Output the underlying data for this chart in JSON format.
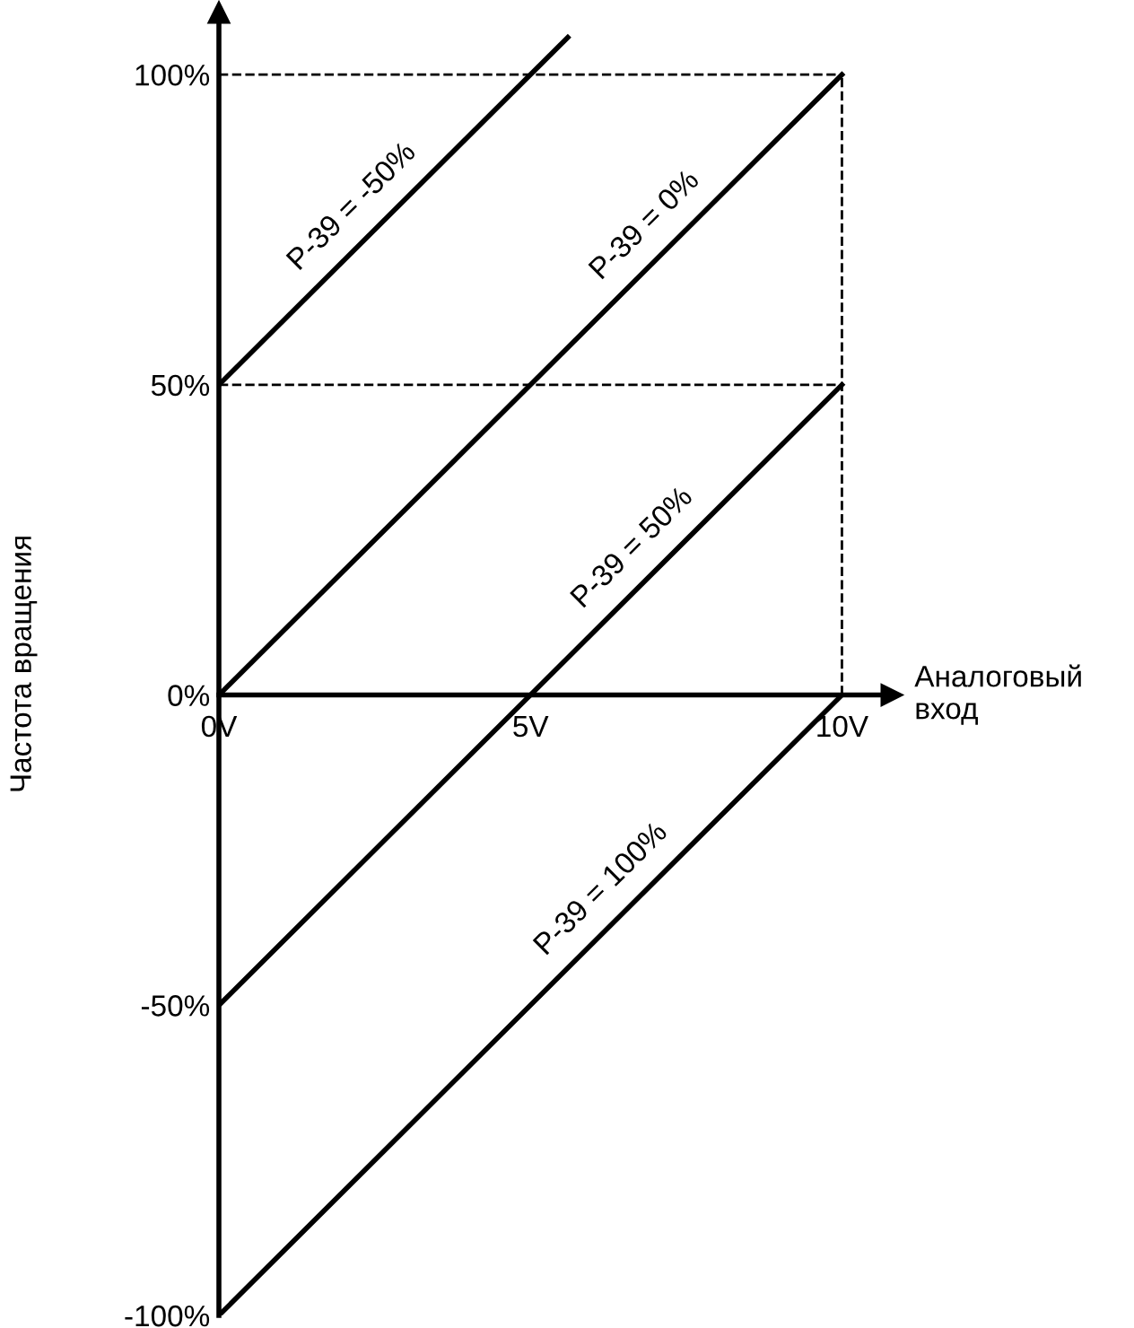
{
  "chart_data": {
    "type": "line",
    "xlabel": "Аналоговый\nвход",
    "ylabel": "Частота вращения",
    "xlim": [
      0,
      10.8
    ],
    "ylim": [
      -100,
      110
    ],
    "xticks": [
      {
        "value": 0,
        "label": "0V"
      },
      {
        "value": 5,
        "label": "5V"
      },
      {
        "value": 10,
        "label": "10V"
      }
    ],
    "yticks": [
      {
        "value": -100,
        "label": "-100%"
      },
      {
        "value": -50,
        "label": "-50%"
      },
      {
        "value": 0,
        "label": "0%"
      },
      {
        "value": 50,
        "label": "50%"
      },
      {
        "value": 100,
        "label": "100%"
      }
    ],
    "series": [
      {
        "color": "#000000",
        "x": [
          0,
          5.6
        ],
        "values": [
          50,
          106
        ]
      },
      {
        "color": "#000000",
        "x": [
          0,
          10
        ],
        "values": [
          0,
          100
        ]
      },
      {
        "color": "#000000",
        "x": [
          0,
          10
        ],
        "values": [
          -50,
          50
        ]
      },
      {
        "color": "#000000",
        "x": [
          0,
          10
        ],
        "values": [
          -100,
          0
        ]
      }
    ],
    "ref_lines": [
      {
        "axis": "y",
        "value": 100,
        "color": "#000000",
        "line_style": "dashed"
      },
      {
        "axis": "y",
        "value": 50,
        "color": "#000000",
        "line_style": "dashed"
      },
      {
        "axis": "x",
        "value": 10,
        "color": "#000000",
        "line_style": "dashed"
      }
    ],
    "annotations": [
      {
        "text": "P-39 = -50%",
        "x": 2.5,
        "y": 75
      },
      {
        "text": "P-39 = 0%",
        "x": 7.2,
        "y": 72
      },
      {
        "text": "P-39 = 50%",
        "x": 7,
        "y": 20
      },
      {
        "text": "P-39 = 100%",
        "x": 6.5,
        "y": -35
      }
    ],
    "grid": false,
    "legend": false,
    "marker": "none",
    "line_style": "solid"
  }
}
